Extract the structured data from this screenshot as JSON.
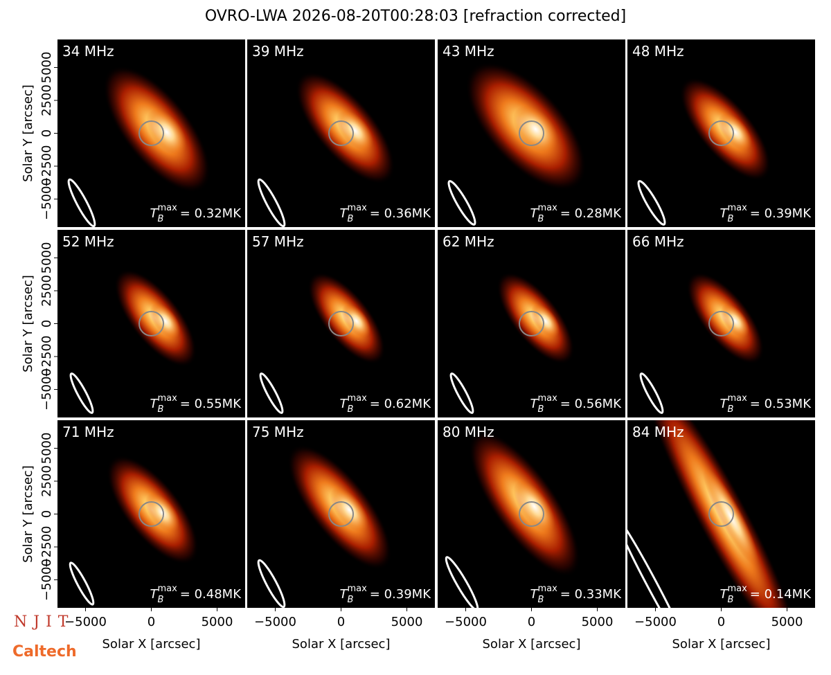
{
  "title": "OVRO-LWA 2026-08-20T00:28:03 [refraction corrected]",
  "logos": [
    "NJIT",
    "Caltech"
  ],
  "chart_data": [
    {
      "type": "image",
      "title": "34 MHz",
      "ylabel": "Solar Y [arcsec]",
      "xlim": [
        -7130,
        7130
      ],
      "ylim": [
        -7130,
        7130
      ],
      "yticks": [
        {
          "value": -5000,
          "label": "−5000"
        },
        {
          "value": -2500,
          "label": "−2500"
        },
        0,
        2500,
        5000
      ],
      "annotation": {
        "symbol": "T",
        "subscript": "B",
        "superscript": "max",
        "text": "= 0.32MK"
      }
    },
    {
      "type": "image",
      "title": "39 MHz",
      "xlim": [
        -7130,
        7130
      ],
      "ylim": [
        -7130,
        7130
      ],
      "annotation": {
        "symbol": "T",
        "subscript": "B",
        "superscript": "max",
        "text": "= 0.36MK"
      }
    },
    {
      "type": "image",
      "title": "43 MHz",
      "xlim": [
        -7130,
        7130
      ],
      "ylim": [
        -7130,
        7130
      ],
      "annotation": {
        "symbol": "T",
        "subscript": "B",
        "superscript": "max",
        "text": "= 0.28MK"
      }
    },
    {
      "type": "image",
      "title": "48 MHz",
      "xlim": [
        -7130,
        7130
      ],
      "ylim": [
        -7130,
        7130
      ],
      "annotation": {
        "symbol": "T",
        "subscript": "B",
        "superscript": "max",
        "text": "= 0.39MK"
      }
    },
    {
      "type": "image",
      "title": "52 MHz",
      "ylabel": "Solar Y [arcsec]",
      "xlim": [
        -7130,
        7130
      ],
      "ylim": [
        -7130,
        7130
      ],
      "yticks": [
        {
          "value": -5000,
          "label": "−5000"
        },
        {
          "value": -2500,
          "label": "−2500"
        },
        0,
        2500,
        5000
      ],
      "annotation": {
        "symbol": "T",
        "subscript": "B",
        "superscript": "max",
        "text": "= 0.55MK"
      }
    },
    {
      "type": "image",
      "title": "57 MHz",
      "xlim": [
        -7130,
        7130
      ],
      "ylim": [
        -7130,
        7130
      ],
      "annotation": {
        "symbol": "T",
        "subscript": "B",
        "superscript": "max",
        "text": "= 0.62MK"
      }
    },
    {
      "type": "image",
      "title": "62 MHz",
      "xlim": [
        -7130,
        7130
      ],
      "ylim": [
        -7130,
        7130
      ],
      "annotation": {
        "symbol": "T",
        "subscript": "B",
        "superscript": "max",
        "text": "= 0.56MK"
      }
    },
    {
      "type": "image",
      "title": "66 MHz",
      "xlim": [
        -7130,
        7130
      ],
      "ylim": [
        -7130,
        7130
      ],
      "annotation": {
        "symbol": "T",
        "subscript": "B",
        "superscript": "max",
        "text": "= 0.53MK"
      }
    },
    {
      "type": "image",
      "title": "71 MHz",
      "ylabel": "Solar Y [arcsec]",
      "xlabel": "Solar X [arcsec]",
      "xlim": [
        -7130,
        7130
      ],
      "ylim": [
        -7130,
        7130
      ],
      "xticks": [
        {
          "value": -5000,
          "label": "−5000"
        },
        0,
        5000
      ],
      "yticks": [
        {
          "value": -5000,
          "label": "−5000"
        },
        {
          "value": -2500,
          "label": "−2500"
        },
        0,
        2500,
        5000
      ],
      "annotation": {
        "symbol": "T",
        "subscript": "B",
        "superscript": "max",
        "text": "= 0.48MK"
      }
    },
    {
      "type": "image",
      "title": "75 MHz",
      "xlabel": "Solar X [arcsec]",
      "xlim": [
        -7130,
        7130
      ],
      "ylim": [
        -7130,
        7130
      ],
      "xticks": [
        {
          "value": -5000,
          "label": "−5000"
        },
        0,
        5000
      ],
      "annotation": {
        "symbol": "T",
        "subscript": "B",
        "superscript": "max",
        "text": "= 0.39MK"
      }
    },
    {
      "type": "image",
      "title": "80 MHz",
      "xlabel": "Solar X [arcsec]",
      "xlim": [
        -7130,
        7130
      ],
      "ylim": [
        -7130,
        7130
      ],
      "xticks": [
        {
          "value": -5000,
          "label": "−5000"
        },
        0,
        5000
      ],
      "annotation": {
        "symbol": "T",
        "subscript": "B",
        "superscript": "max",
        "text": "= 0.33MK"
      }
    },
    {
      "type": "image",
      "title": "84 MHz",
      "xlabel": "Solar X [arcsec]",
      "xlim": [
        -7130,
        7130
      ],
      "ylim": [
        -7130,
        7130
      ],
      "xticks": [
        {
          "value": -5000,
          "label": "−5000"
        },
        0,
        5000
      ],
      "annotation": {
        "symbol": "T",
        "subscript": "B",
        "superscript": "max",
        "text": "= 0.14MK"
      }
    }
  ]
}
